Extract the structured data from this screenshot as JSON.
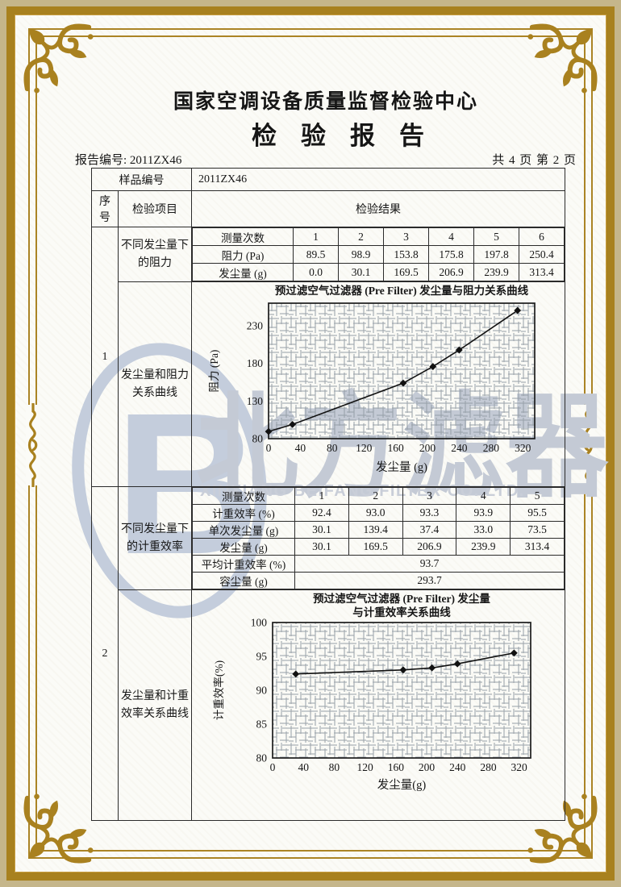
{
  "page": {
    "center_name": "国家空调设备质量监督检验中心",
    "report_title": "检验报告",
    "report_no": "报告编号: 2011ZX46",
    "page_info": "共 4 页 第 2 页"
  },
  "table": {
    "sample_no_label": "样品编号",
    "sample_no_value": "2011ZX46",
    "col_seq": "序号",
    "col_item": "检验项目",
    "col_result": "检验结果"
  },
  "section1": {
    "seq": "1",
    "item1": "不同发尘量下的阻力",
    "item2": "发尘量和阻力关系曲线",
    "meas_table": {
      "rows": [
        {
          "label": "测量次数",
          "values": [
            "1",
            "2",
            "3",
            "4",
            "5",
            "6"
          ]
        },
        {
          "label": "阻力 (Pa)",
          "values": [
            "89.5",
            "98.9",
            "153.8",
            "175.8",
            "197.8",
            "250.4"
          ]
        },
        {
          "label": "发尘量 (g)",
          "values": [
            "0.0",
            "30.1",
            "169.5",
            "206.9",
            "239.9",
            "313.4"
          ]
        }
      ]
    }
  },
  "section2": {
    "seq": "2",
    "item1": "不同发尘量下的计重效率",
    "item2": "发尘量和计重效率关系曲线",
    "meas_table": {
      "rows": [
        {
          "label": "测量次数",
          "values": [
            "1",
            "2",
            "3",
            "4",
            "5"
          ]
        },
        {
          "label": "计重效率 (%)",
          "values": [
            "92.4",
            "93.0",
            "93.3",
            "93.9",
            "95.5"
          ]
        },
        {
          "label": "单次发尘量 (g)",
          "values": [
            "30.1",
            "139.4",
            "37.4",
            "33.0",
            "73.5"
          ]
        },
        {
          "label": "发尘量 (g)",
          "values": [
            "30.1",
            "169.5",
            "206.9",
            "239.9",
            "313.4"
          ]
        }
      ],
      "avg_label": "平均计重效率 (%)",
      "avg_value": "93.7",
      "cap_label": "容尘量 (g)",
      "cap_value": "293.7"
    }
  },
  "chart_data": [
    {
      "type": "line",
      "title": "预过滤空气过滤器 (Pre Filter) 发尘量与阻力关系曲线",
      "xlabel": "发尘量 (g)",
      "ylabel": "阻力 (Pa)",
      "x": [
        0,
        30.1,
        169.5,
        206.9,
        239.9,
        313.4
      ],
      "y": [
        89.5,
        98.9,
        153.8,
        175.8,
        197.8,
        250.4
      ],
      "xlim": [
        0,
        335
      ],
      "ylim": [
        80,
        260
      ],
      "xticks": [
        0,
        40,
        80,
        120,
        160,
        200,
        240,
        280,
        320
      ],
      "yticks": [
        80,
        130,
        180,
        230
      ],
      "marker": "diamond",
      "grid": true,
      "legend": "none"
    },
    {
      "type": "line",
      "title": "预过滤空气过滤器 (Pre Filter) 发尘量",
      "title2": "与计重效率关系曲线",
      "xlabel": "发尘量(g)",
      "ylabel": "计重效率(%)",
      "x": [
        30.1,
        169.5,
        206.9,
        239.9,
        313.4
      ],
      "y": [
        92.4,
        93.0,
        93.3,
        93.9,
        95.5
      ],
      "xlim": [
        0,
        335
      ],
      "ylim": [
        80,
        100
      ],
      "xticks": [
        0,
        40,
        80,
        120,
        160,
        200,
        240,
        280,
        320
      ],
      "yticks": [
        80,
        85,
        90,
        95,
        100
      ],
      "marker": "diamond",
      "grid": true,
      "legend": "none"
    }
  ],
  "watermark": {
    "text": "北方滤器",
    "subtext": "XINXIANG BEIFANG FILTER CO.,LTD."
  },
  "colors": {
    "frame_gold": "#a8811f",
    "table_line": "#2b2b2b",
    "watermark_blue": "#c4cad5",
    "paper": "#fbfbf7",
    "margin_tan": "#c5b68b"
  }
}
